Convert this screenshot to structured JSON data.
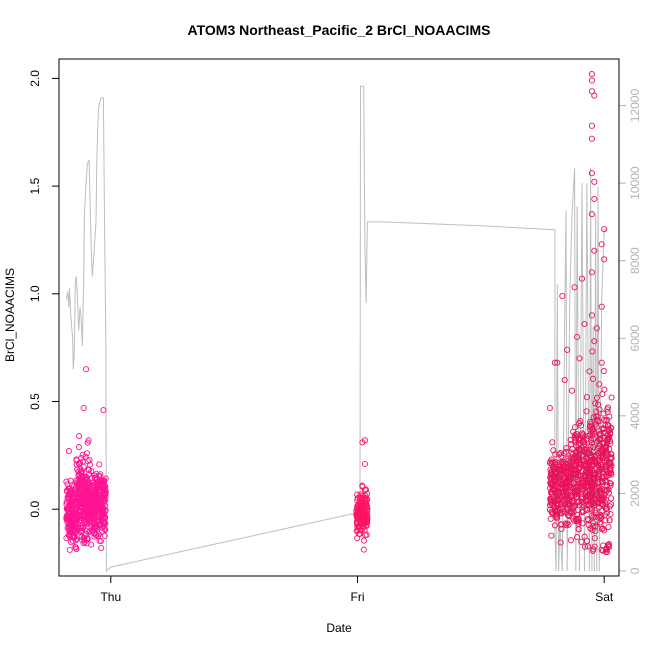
{
  "chart_data": {
    "type": "scatter",
    "title": "ATOM3 Northeast_Pacific_2 BrCl_NOAACIMS",
    "xlabel": "Date",
    "ylabel": "BrCl_NOAACIMS",
    "x_ticks": [
      {
        "label": "Thu",
        "x": 1.0
      },
      {
        "label": "Fri",
        "x": 2.0
      },
      {
        "label": "Sat",
        "x": 3.0
      }
    ],
    "xlim": [
      0.79,
      3.06
    ],
    "ylim": [
      -0.31,
      2.09
    ],
    "y_ticks": [
      0.0,
      0.5,
      1.0,
      1.5,
      2.0
    ],
    "y_tick_labels": [
      "0.0",
      "0.5",
      "1.0",
      "1.5",
      "2.0"
    ],
    "y2lim": [
      -130,
      13200
    ],
    "y2_ticks": [
      0,
      2000,
      4000,
      6000,
      8000,
      10000,
      12000
    ],
    "y2_tick_labels": [
      "0",
      "2000",
      "4000",
      "6000",
      "8000",
      "10000",
      "12000"
    ],
    "grid": false,
    "legend": "none",
    "colors": {
      "points_early": "#ff1493",
      "points_mid": "#ff1464",
      "points_late": "#e8145a",
      "altitude_line": "#bebebe",
      "right_axis": "#b3b3b3"
    },
    "series": [
      {
        "kind": "points",
        "axis": "left",
        "segments": [
          {
            "x_range": [
              0.82,
              0.98
            ],
            "clusters": [
              {
                "x": [
                  0.82,
                  0.86
                ],
                "mean": -0.02,
                "sd": 0.07,
                "n": 160
              },
              {
                "x": [
                  0.86,
                  0.91
                ],
                "mean": 0.05,
                "sd": 0.09,
                "n": 220
              },
              {
                "x": [
                  0.91,
                  0.94
                ],
                "mean": 0.02,
                "sd": 0.07,
                "n": 130
              },
              {
                "x": [
                  0.94,
                  0.98
                ],
                "mean": 0.03,
                "sd": 0.07,
                "n": 160
              }
            ]
          },
          {
            "x_range": [
              1.995,
              2.04
            ],
            "clusters": [
              {
                "x": [
                  1.995,
                  2.04
                ],
                "mean": -0.03,
                "sd": 0.05,
                "n": 170
              }
            ]
          },
          {
            "x_range": [
              2.78,
              3.06
            ],
            "clusters": [
              {
                "x": [
                  2.78,
                  2.86
                ],
                "mean": 0.1,
                "sd": 0.09,
                "n": 240
              },
              {
                "x": [
                  2.86,
                  2.95
                ],
                "mean": 0.14,
                "sd": 0.12,
                "n": 300
              },
              {
                "x": [
                  2.95,
                  3.03
                ],
                "mean": 0.18,
                "sd": 0.17,
                "n": 300
              }
            ]
          }
        ],
        "highlights": [
          {
            "x": 0.9,
            "y": 0.65
          },
          {
            "x": 0.89,
            "y": 0.47
          },
          {
            "x": 0.91,
            "y": 0.32
          },
          {
            "x": 0.97,
            "y": 0.46
          },
          {
            "x": 0.83,
            "y": 0.27
          },
          {
            "x": 2.03,
            "y": 0.32
          },
          {
            "x": 2.02,
            "y": 0.31
          },
          {
            "x": 2.03,
            "y": 0.21
          },
          {
            "x": 2.95,
            "y": 2.02
          },
          {
            "x": 2.95,
            "y": 1.99
          },
          {
            "x": 2.95,
            "y": 1.94
          },
          {
            "x": 2.96,
            "y": 1.92
          },
          {
            "x": 2.95,
            "y": 1.78
          },
          {
            "x": 2.95,
            "y": 1.72
          },
          {
            "x": 2.95,
            "y": 1.56
          },
          {
            "x": 2.96,
            "y": 1.52
          },
          {
            "x": 2.96,
            "y": 1.44
          },
          {
            "x": 2.95,
            "y": 1.37
          },
          {
            "x": 3.0,
            "y": 1.3
          },
          {
            "x": 2.99,
            "y": 1.23
          },
          {
            "x": 2.96,
            "y": 1.2
          },
          {
            "x": 3.0,
            "y": 1.16
          },
          {
            "x": 2.95,
            "y": 1.1
          },
          {
            "x": 2.91,
            "y": 1.07
          },
          {
            "x": 2.88,
            "y": 1.03
          },
          {
            "x": 2.83,
            "y": 0.99
          },
          {
            "x": 2.99,
            "y": 0.94
          },
          {
            "x": 2.95,
            "y": 0.9
          },
          {
            "x": 2.92,
            "y": 0.86
          },
          {
            "x": 2.97,
            "y": 0.84
          },
          {
            "x": 2.89,
            "y": 0.8
          },
          {
            "x": 2.96,
            "y": 0.78
          },
          {
            "x": 2.85,
            "y": 0.74
          },
          {
            "x": 2.9,
            "y": 0.7
          },
          {
            "x": 2.99,
            "y": 0.68
          },
          {
            "x": 2.81,
            "y": 0.68
          },
          {
            "x": 2.8,
            "y": 0.68
          },
          {
            "x": 2.94,
            "y": 0.64
          },
          {
            "x": 2.84,
            "y": 0.6
          },
          {
            "x": 2.98,
            "y": 0.58
          },
          {
            "x": 2.87,
            "y": 0.55
          },
          {
            "x": 2.93,
            "y": 0.52
          },
          {
            "x": 2.78,
            "y": 0.47
          }
        ]
      },
      {
        "kind": "line",
        "axis": "right",
        "color": "#bebebe",
        "x": [
          0.82,
          0.825,
          0.83,
          0.832,
          0.838,
          0.845,
          0.848,
          0.852,
          0.856,
          0.86,
          0.864,
          0.87,
          0.875,
          0.88,
          0.885,
          0.888,
          0.89,
          0.893,
          0.9,
          0.905,
          0.912,
          0.92,
          0.925,
          0.93,
          0.94,
          0.943,
          0.946,
          0.95,
          0.955,
          0.962,
          0.97,
          0.975,
          0.98,
          0.982,
          1.0,
          1.5,
          2.0,
          2.01,
          2.012,
          2.02,
          2.025,
          2.03,
          2.035,
          2.04,
          2.05,
          2.06,
          2.07,
          2.078,
          2.082,
          2.09,
          2.1,
          2.5,
          2.8,
          2.8,
          2.805,
          2.81,
          2.815,
          2.82,
          2.83,
          2.84,
          2.845,
          2.85,
          2.86,
          2.87,
          2.88,
          2.885,
          2.89,
          2.9,
          2.91,
          2.92,
          2.93,
          2.94,
          2.945,
          2.95,
          2.955,
          2.96,
          2.965,
          2.97,
          2.975,
          2.98,
          2.99,
          3.0,
          3.01
        ],
        "y": [
          7000,
          7200,
          6800,
          7300,
          6600,
          6000,
          5200,
          5600,
          7400,
          7600,
          7100,
          6200,
          6800,
          6500,
          5800,
          6900,
          7500,
          9200,
          10000,
          10500,
          10600,
          8400,
          7600,
          8000,
          9000,
          10400,
          11200,
          11900,
          12100,
          12200,
          12200,
          8800,
          5800,
          0,
          100,
          800,
          1500,
          1500,
          12500,
          12500,
          12500,
          8400,
          6900,
          9000,
          9000,
          9000,
          9000,
          9000,
          9000,
          9000,
          9000,
          8900,
          8800,
          1000,
          0,
          7400,
          0,
          1200,
          0,
          6500,
          9300,
          0,
          7000,
          9200,
          10400,
          0,
          9400,
          0,
          10000,
          0,
          10000,
          0,
          10400,
          0,
          6300,
          0,
          9200,
          0,
          9900,
          0,
          7000,
          8800,
          8800
        ]
      }
    ]
  }
}
